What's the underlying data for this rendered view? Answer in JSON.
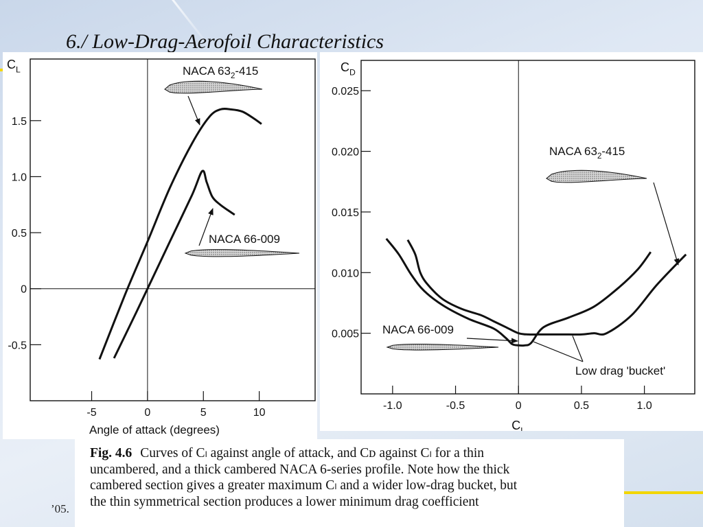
{
  "slide": {
    "title": "6./ Low-Drag-Aerofoil Characteristics",
    "footer": "’05.",
    "accent_color": "#f2d600"
  },
  "caption": {
    "label": "Fig. 4.6",
    "lines": [
      "Curves of Cₗ against angle of attack, and Cᴅ against Cₗ for a thin",
      "uncambered, and a thick cambered NACA 6-series profile. Note how the thick",
      "cambered section gives a greater maximum Cₗ and a wider low-drag bucket, but",
      "the thin symmetrical section produces a lower minimum drag coefficient"
    ]
  },
  "chart_data": [
    {
      "type": "line",
      "xlabel": "Angle of attack (degrees)",
      "ylabel": "C",
      "ylabel_sub": "L",
      "xlim": [
        -10.5,
        15
      ],
      "ylim": [
        -1.0,
        2.05
      ],
      "xticks": [
        -5,
        0,
        5,
        10
      ],
      "xtick_labels": [
        "-5",
        "0",
        "5",
        "10"
      ],
      "yticks": [
        -0.5,
        0,
        0.5,
        1.0,
        1.5
      ],
      "ytick_labels": [
        "-0.5",
        "0",
        "0.5",
        "1.0",
        "1.5"
      ],
      "grid": false,
      "series": [
        {
          "name": "NACA 63₂-415",
          "label_main": "NACA 63",
          "label_sub": "2",
          "label_tail": "-415",
          "x": [
            -4.3,
            -2.0,
            0,
            2.0,
            4.0,
            5.5,
            6.5,
            7.5,
            8.5,
            9.5,
            10.2
          ],
          "y": [
            -0.63,
            -0.05,
            0.42,
            0.9,
            1.3,
            1.53,
            1.6,
            1.6,
            1.58,
            1.52,
            1.47
          ]
        },
        {
          "name": "NACA 66-009",
          "label_main": "NACA 66-009",
          "x": [
            -3.0,
            -1.0,
            0,
            2.0,
            4.0,
            4.9,
            5.3,
            5.8,
            6.5,
            7.2,
            7.8
          ],
          "y": [
            -0.62,
            -0.21,
            0,
            0.42,
            0.84,
            1.05,
            0.95,
            0.82,
            0.75,
            0.7,
            0.66
          ]
        }
      ]
    },
    {
      "type": "line",
      "xlabel": "C",
      "xlabel_sub": "L",
      "ylabel": "C",
      "ylabel_sub": "D",
      "xlim": [
        -1.25,
        1.4
      ],
      "ylim": [
        0.0,
        0.0275
      ],
      "xticks": [
        -1.0,
        -0.5,
        0,
        0.5,
        1.0
      ],
      "xtick_labels": [
        "-1.0",
        "-0.5",
        "0",
        "0.5",
        "1.0"
      ],
      "yticks": [
        0.005,
        0.01,
        0.015,
        0.02,
        0.025
      ],
      "ytick_labels": [
        "0.005",
        "0.010",
        "0.015",
        "0.020",
        "0.025"
      ],
      "grid": false,
      "annotation": "Low drag 'bucket'",
      "series": [
        {
          "name": "NACA 63₂-415",
          "label_main": "NACA 63",
          "label_sub": "2",
          "label_tail": "-415",
          "x": [
            -0.88,
            -0.82,
            -0.78,
            -0.72,
            -0.6,
            -0.45,
            -0.3,
            -0.2,
            -0.1,
            0,
            0.08,
            0.15,
            0.2,
            0.3,
            0.4,
            0.5,
            0.6,
            0.7,
            0.9,
            1.1,
            1.33
          ],
          "y": [
            0.0127,
            0.0115,
            0.01,
            0.009,
            0.0078,
            0.007,
            0.0065,
            0.006,
            0.0055,
            0.005,
            0.0049,
            0.0049,
            0.0049,
            0.0049,
            0.0049,
            0.0049,
            0.005,
            0.005,
            0.0065,
            0.009,
            0.0115
          ]
        },
        {
          "name": "NACA 66-009",
          "label_main": "NACA 66-009",
          "x": [
            -1.05,
            -0.95,
            -0.85,
            -0.75,
            -0.6,
            -0.4,
            -0.2,
            -0.1,
            -0.05,
            0,
            0.05,
            0.1,
            0.2,
            0.4,
            0.6,
            0.8,
            0.95,
            1.05
          ],
          "y": [
            0.0128,
            0.0115,
            0.0098,
            0.0085,
            0.0073,
            0.0062,
            0.0054,
            0.0046,
            0.0041,
            0.004,
            0.004,
            0.0042,
            0.0055,
            0.0063,
            0.0072,
            0.0088,
            0.0103,
            0.0117
          ]
        }
      ]
    }
  ]
}
